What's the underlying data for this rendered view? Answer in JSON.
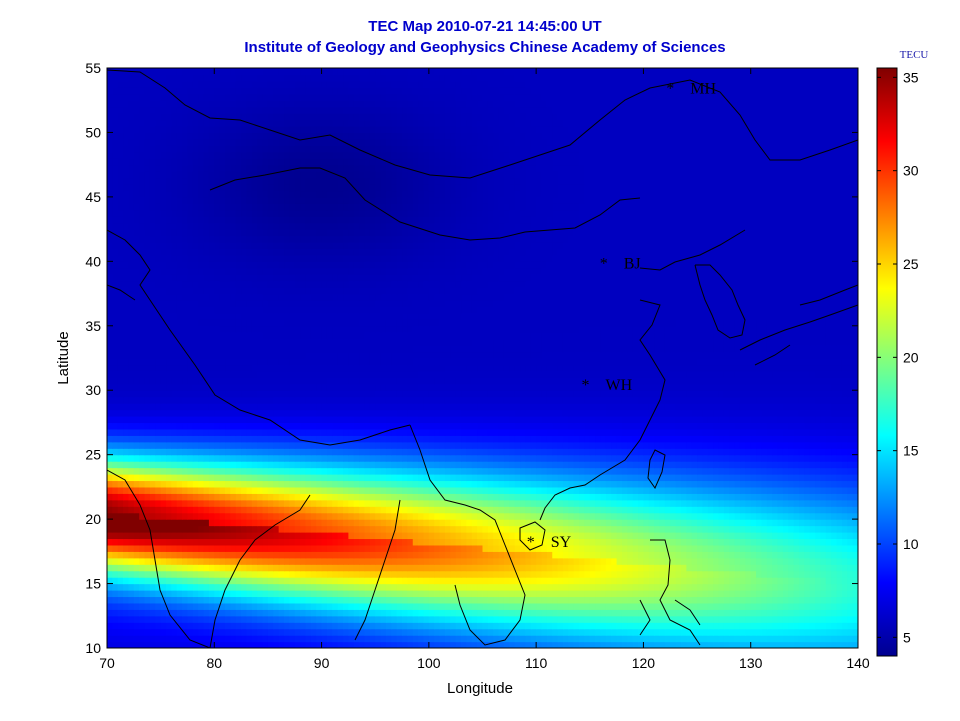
{
  "chart_data": {
    "type": "heatmap",
    "title": "TEC Map 2010-07-21 14:45:00 UT",
    "subtitle": "Institute of Geology and Geophysics Chinese Academy of Sciences",
    "xlabel": "Longitude",
    "ylabel": "Latitude",
    "xlim": [
      70,
      140
    ],
    "ylim": [
      10,
      55
    ],
    "xticks": [
      70,
      80,
      90,
      100,
      110,
      120,
      130,
      140
    ],
    "yticks": [
      10,
      15,
      20,
      25,
      30,
      35,
      40,
      45,
      50,
      55
    ],
    "colorbar": {
      "label": "TECU",
      "range": [
        4,
        35.5
      ],
      "ticks": [
        5,
        10,
        15,
        20,
        25,
        30,
        35
      ],
      "colormap": "jet"
    },
    "grid": false,
    "features": {
      "peak_band": {
        "lat_center_at_70": 20.5,
        "lat_center_at_140": 15,
        "peak_value": 35
      },
      "low_region_value": 6
    },
    "stations": [
      {
        "name": "MH",
        "lon": 122.5,
        "lat": 53.5
      },
      {
        "name": "BJ",
        "lon": 116.3,
        "lat": 39.9
      },
      {
        "name": "WH",
        "lon": 114.6,
        "lat": 30.5
      },
      {
        "name": "SY",
        "lon": 109.5,
        "lat": 18.3
      }
    ]
  }
}
